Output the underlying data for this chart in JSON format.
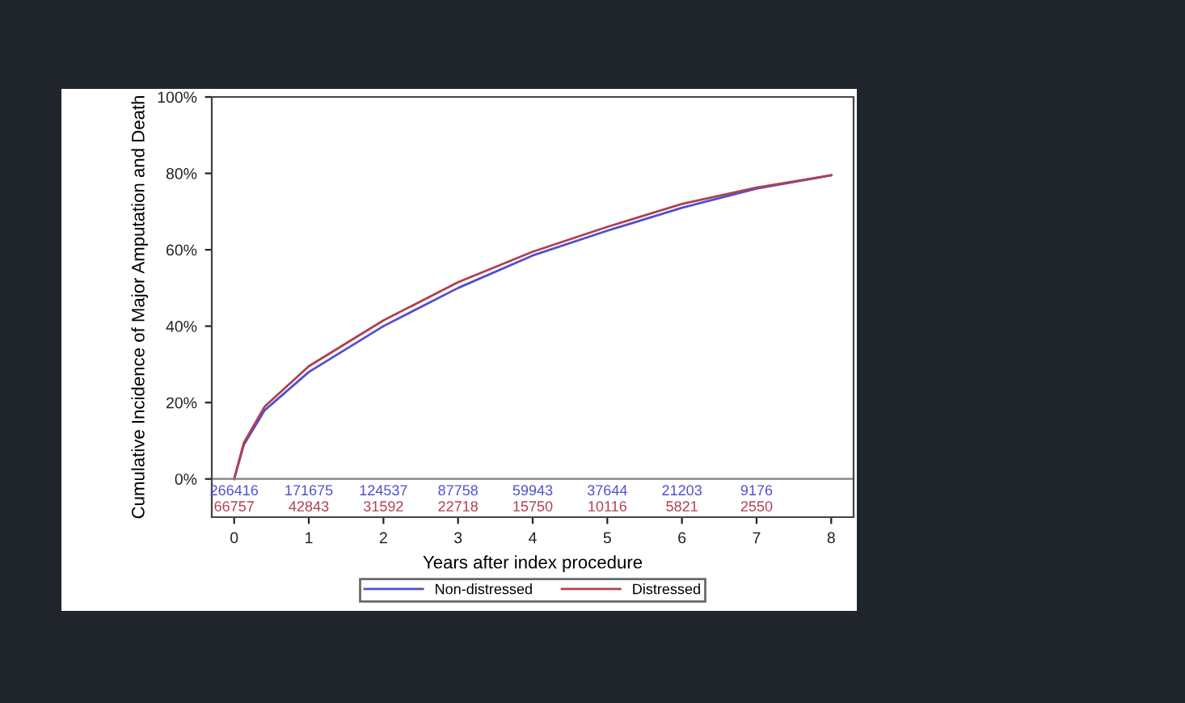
{
  "chart_data": {
    "type": "line",
    "xlabel": "Years after index procedure",
    "ylabel": "Cumulative Incidence of Major Amputation and Death",
    "xlim": [
      -0.3,
      8.3
    ],
    "xticks": [
      0,
      1,
      2,
      3,
      4,
      5,
      6,
      7,
      8
    ],
    "ylim": [
      -10,
      100
    ],
    "yticks": [
      {
        "value": 0,
        "label": "0%"
      },
      {
        "value": 20,
        "label": "20%"
      },
      {
        "value": 40,
        "label": "40%"
      },
      {
        "value": 60,
        "label": "60%"
      },
      {
        "value": 80,
        "label": "80%"
      },
      {
        "value": 100,
        "label": "100%"
      }
    ],
    "ref_lines": [
      {
        "axis": "y",
        "value": 0,
        "color": "#808080"
      }
    ],
    "grid": false,
    "legend": "bottom",
    "marker": "none",
    "line_style": "solid",
    "series": [
      {
        "name": "Non-distressed",
        "color": "#5050d0",
        "x": [
          0,
          0.13,
          0.41,
          1,
          2,
          3,
          4,
          5,
          6,
          7,
          8
        ],
        "values": [
          0,
          9,
          18,
          28,
          40,
          50,
          58.5,
          65,
          71,
          76,
          79.5
        ]
      },
      {
        "name": "Distressed",
        "color": "#b04050",
        "x": [
          0,
          0.13,
          0.41,
          1,
          2,
          3,
          4,
          5,
          6,
          7,
          8
        ],
        "values": [
          0,
          9.5,
          19,
          29.5,
          41.5,
          51.5,
          59.5,
          66,
          72,
          76.3,
          79.5
        ]
      }
    ],
    "annotations": [
      "266416",
      "171675",
      "124537",
      "87758",
      "59943",
      "37644",
      "21203",
      "9176",
      "66757",
      "42843",
      "31592",
      "22718",
      "15750",
      "10116",
      "5821",
      "2550"
    ]
  }
}
